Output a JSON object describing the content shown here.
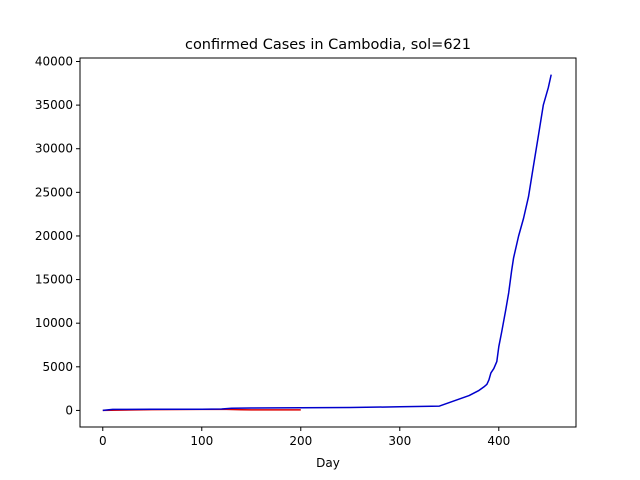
{
  "chart_data": {
    "type": "line",
    "title": "confirmed Cases in Cambodia, sol=621",
    "xlabel": "Day",
    "ylabel": "",
    "xlim": [
      -23,
      478
    ],
    "ylim": [
      -1900,
      40400
    ],
    "xticks": [
      0,
      100,
      200,
      300,
      400
    ],
    "yticks": [
      0,
      5000,
      10000,
      15000,
      20000,
      25000,
      30000,
      35000,
      40000
    ],
    "grid": false,
    "series": [
      {
        "color": "#0000cc",
        "x": [
          0,
          10,
          50,
          100,
          120,
          130,
          150,
          200,
          250,
          300,
          340,
          350,
          360,
          370,
          380,
          385,
          388,
          390,
          392,
          395,
          398,
          400,
          403,
          407,
          410,
          413,
          415,
          420,
          425,
          430,
          435,
          440,
          445,
          450,
          453
        ],
        "y": [
          0,
          120,
          130,
          140,
          160,
          250,
          280,
          310,
          340,
          420,
          500,
          900,
          1300,
          1700,
          2300,
          2700,
          3000,
          3500,
          4300,
          4800,
          5600,
          7300,
          9000,
          11500,
          13500,
          16000,
          17500,
          20000,
          22000,
          24500,
          28000,
          31500,
          35000,
          37000,
          38500
        ]
      },
      {
        "color": "#dd0000",
        "x": [
          0,
          50,
          100,
          120,
          140,
          150,
          160,
          170,
          180,
          190,
          200
        ],
        "y": [
          0,
          100,
          120,
          130,
          70,
          60,
          60,
          60,
          60,
          60,
          60
        ]
      }
    ]
  }
}
